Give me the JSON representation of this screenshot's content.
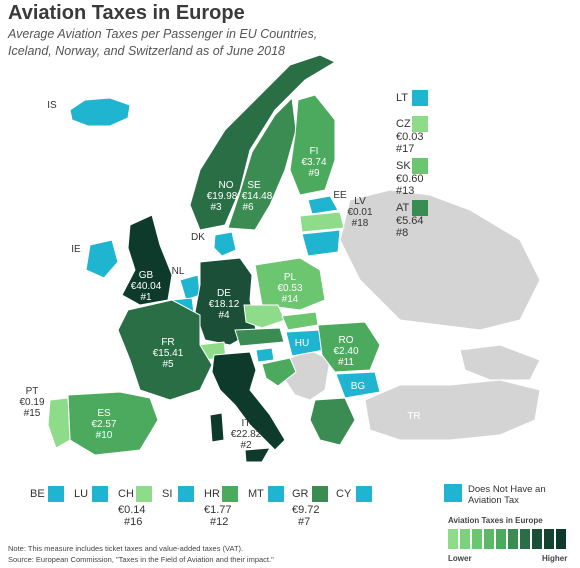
{
  "title": "Aviation Taxes in Europe",
  "subtitle": "Average Aviation Taxes per Passenger in EU Countries, Iceland, Norway, and Switzerland as of June 2018",
  "colors": {
    "no_tax": "#1fb5d0",
    "none_data": "#d4d4d4",
    "tier1": "#8edc8a",
    "tier2": "#6cc66f",
    "tier3": "#4caa5e",
    "tier4": "#3a8c52",
    "tier5": "#2a6e45",
    "tier6": "#1b4f38",
    "tier7": "#0e3a2c"
  },
  "countries": {
    "is": {
      "code": "IS"
    },
    "no": {
      "code": "NO",
      "value": "€19.98",
      "rank": "#3"
    },
    "se": {
      "code": "SE",
      "value": "€14.48",
      "rank": "#6"
    },
    "fi": {
      "code": "FI",
      "value": "€3.74",
      "rank": "#9"
    },
    "ee": {
      "code": "EE"
    },
    "lv": {
      "code": "LV",
      "value": "€0.01",
      "rank": "#18"
    },
    "dk": {
      "code": "DK"
    },
    "ie": {
      "code": "IE"
    },
    "gb": {
      "code": "GB",
      "value": "€40.04",
      "rank": "#1"
    },
    "nl": {
      "code": "NL"
    },
    "de": {
      "code": "DE",
      "value": "€18.12",
      "rank": "#4"
    },
    "pl": {
      "code": "PL",
      "value": "€0.53",
      "rank": "#14"
    },
    "fr": {
      "code": "FR",
      "value": "€15.41",
      "rank": "#5"
    },
    "ro": {
      "code": "RO",
      "value": "€2.40",
      "rank": "#11"
    },
    "hu": {
      "code": "HU"
    },
    "bg": {
      "code": "BG"
    },
    "pt": {
      "code": "PT",
      "value": "€0.19",
      "rank": "#15"
    },
    "es": {
      "code": "ES",
      "value": "€2.57",
      "rank": "#10"
    },
    "it": {
      "code": "IT",
      "value": "€22.82",
      "rank": "#2"
    },
    "tr": {
      "code": "TR"
    }
  },
  "side_legend": {
    "lt": {
      "code": "LT"
    },
    "cz": {
      "code": "CZ",
      "value": "€0.03",
      "rank": "#17"
    },
    "sk": {
      "code": "SK",
      "value": "€0.60",
      "rank": "#13"
    },
    "at": {
      "code": "AT",
      "value": "€5.64",
      "rank": "#8"
    }
  },
  "bottom_legend": {
    "be": {
      "code": "BE"
    },
    "lu": {
      "code": "LU"
    },
    "ch": {
      "code": "CH",
      "value": "€0.14",
      "rank": "#16"
    },
    "si": {
      "code": "SI"
    },
    "hr": {
      "code": "HR",
      "value": "€1.77",
      "rank": "#12"
    },
    "mt": {
      "code": "MT"
    },
    "gr": {
      "code": "GR",
      "value": "€9.72",
      "rank": "#7"
    },
    "cy": {
      "code": "CY"
    }
  },
  "no_tax_legend": "Does Not Have an Aviation Tax",
  "scale": {
    "title": "Aviation Taxes in Europe",
    "low": "Lower",
    "high": "Higher"
  },
  "note": "Note: This measure includes ticket taxes and value-added taxes (VAT).",
  "source": "Source: European Commission, \"Taxes in the Field of Aviation and their impact.\""
}
